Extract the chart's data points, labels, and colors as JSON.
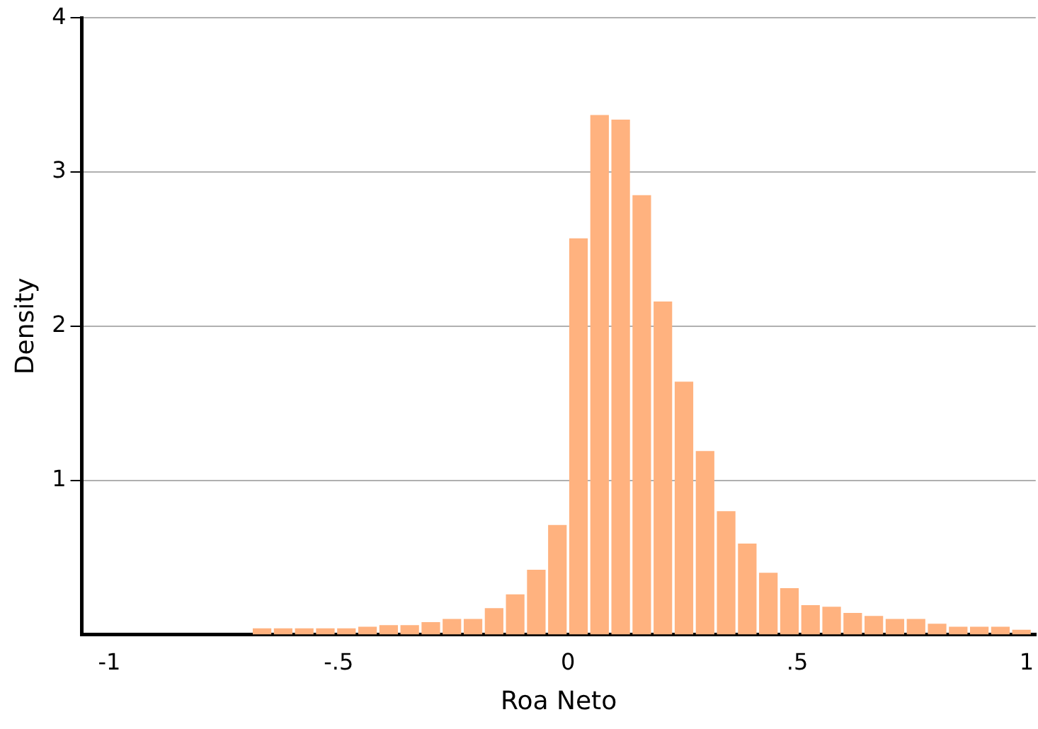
{
  "chart_data": {
    "type": "histogram",
    "xlabel": "Roa Neto",
    "ylabel": "Density",
    "bins": [
      -0.69,
      -0.644,
      -0.598,
      -0.552,
      -0.506,
      -0.46,
      -0.414,
      -0.368,
      -0.322,
      -0.276,
      -0.23,
      -0.184,
      -0.138,
      -0.092,
      -0.046,
      0,
      0.046,
      0.092,
      0.138,
      0.184,
      0.23,
      0.276,
      0.322,
      0.368,
      0.414,
      0.46,
      0.506,
      0.552,
      0.598,
      0.644,
      0.69,
      0.736,
      0.782,
      0.828,
      0.874,
      0.92,
      0.966,
      1.012
    ],
    "values": [
      0.04,
      0.04,
      0.04,
      0.04,
      0.04,
      0.05,
      0.06,
      0.06,
      0.08,
      0.1,
      0.1,
      0.17,
      0.26,
      0.42,
      0.71,
      2.57,
      3.37,
      3.34,
      2.85,
      2.16,
      1.64,
      1.19,
      0.8,
      0.59,
      0.4,
      0.3,
      0.19,
      0.18,
      0.14,
      0.12,
      0.1,
      0.1,
      0.07,
      0.05,
      0.05,
      0.05,
      0.03
    ],
    "color": "#ffb27f",
    "xlim": [
      -1.06,
      1.02
    ],
    "xticks": [
      {
        "value": -1,
        "label": "-1"
      },
      {
        "value": -0.5,
        "label": "-.5"
      },
      0,
      {
        "value": 0.5,
        "label": ".5"
      },
      1
    ],
    "ylim": [
      0,
      4
    ],
    "yticks": [
      1,
      2,
      3,
      4
    ],
    "grid": "y",
    "legend": false
  }
}
